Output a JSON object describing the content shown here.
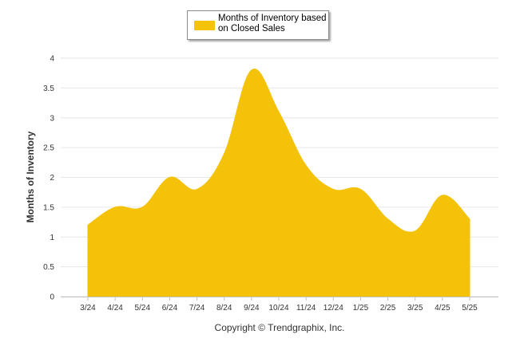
{
  "chart_data": {
    "type": "area",
    "categories": [
      "3/24",
      "4/24",
      "5/24",
      "6/24",
      "7/24",
      "8/24",
      "9/24",
      "10/24",
      "11/24",
      "12/24",
      "1/25",
      "2/25",
      "3/25",
      "4/25",
      "5/25"
    ],
    "series": [
      {
        "name": "Months of Inventory based on Closed Sales",
        "values": [
          1.2,
          1.5,
          1.5,
          2.0,
          1.8,
          2.4,
          3.8,
          3.1,
          2.2,
          1.8,
          1.8,
          1.3,
          1.1,
          1.7,
          1.3
        ]
      }
    ],
    "ylabel": "Months of Inventory",
    "xlabel": "",
    "ylim": [
      0,
      4
    ],
    "yticks": [
      "0",
      "0.5",
      "1",
      "1.5",
      "2",
      "2.5",
      "3",
      "3.5",
      "4"
    ],
    "grid": true,
    "legend": "top-center"
  },
  "colors": {
    "fill": "#f5c20a",
    "grid": "#e6e6e6",
    "axis": "#c0c0c0",
    "text": "#333333"
  },
  "footer": {
    "copyright": "Copyright © Trendgraphix, Inc."
  }
}
